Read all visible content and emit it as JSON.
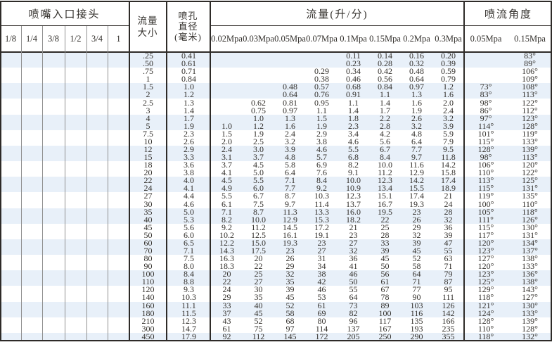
{
  "header": {
    "connector_title": "喷嘴入口接头",
    "connector_sizes": [
      "1/8",
      "1/4",
      "3/8",
      "1/2",
      "3/4",
      "1"
    ],
    "flow_size_lines": [
      "流量",
      "大小"
    ],
    "orifice_lines": [
      "喷孔",
      "直径",
      "(毫米)"
    ],
    "flow_title": "流量(升/分)",
    "pressure_labels": [
      "0.02Mpa",
      "0.03Mpa",
      "0.05Mpa",
      "0.07Mpa",
      "0.1Mpa",
      "0.15Mpa",
      "0.2Mpa",
      "0.3Mpa"
    ],
    "angle_title": "喷流角度",
    "angle_pressure_labels": [
      "0.05Mpa",
      "0.15Mpa"
    ]
  },
  "colors": {
    "stripe": "#e8f0f9",
    "border": "#2e2b28",
    "thin_grid": "#909090",
    "dot": "#261f19",
    "text": "#33302c"
  },
  "table": {
    "rows": [
      {
        "size": ".25",
        "dia": "0.41",
        "dots": [
          1,
          0,
          0,
          0,
          0,
          0
        ],
        "flows": [
          "",
          "",
          "",
          "",
          "0.11",
          "0.14",
          "0.16",
          "0.20"
        ],
        "angles": [
          "",
          "83°"
        ]
      },
      {
        "size": ".50",
        "dia": "0.61",
        "dots": [
          1,
          0,
          0,
          0,
          0,
          0
        ],
        "flows": [
          "",
          "",
          "",
          "",
          "0.23",
          "0.28",
          "0.32",
          "0.39"
        ],
        "angles": [
          "",
          "89°"
        ]
      },
      {
        "size": ".75",
        "dia": "0.71",
        "dots": [
          1,
          0,
          0,
          0,
          0,
          0
        ],
        "flows": [
          "",
          "",
          "",
          "0.29",
          "0.34",
          "0.42",
          "0.48",
          "0.59"
        ],
        "angles": [
          "",
          "106°"
        ]
      },
      {
        "size": "1",
        "dia": "0.84",
        "dots": [
          1,
          0,
          0,
          0,
          0,
          0
        ],
        "flows": [
          "",
          "",
          "",
          "0.38",
          "0.46",
          "0.56",
          "0.64",
          "0.79"
        ],
        "angles": [
          "",
          "109°"
        ]
      },
      {
        "size": "1.5",
        "dia": "1.0",
        "dots": [
          1,
          0,
          0,
          0,
          0,
          0
        ],
        "flows": [
          "",
          "",
          "0.48",
          "0.57",
          "0.68",
          "0.84",
          "0.97",
          "1.2"
        ],
        "angles": [
          "73°",
          "108°"
        ]
      },
      {
        "size": "2",
        "dia": "1.2",
        "dots": [
          1,
          1,
          0,
          0,
          0,
          0
        ],
        "flows": [
          "",
          "",
          "0.64",
          "0.76",
          "0.91",
          "1.1",
          "1.3",
          "1.6"
        ],
        "angles": [
          "83°",
          "113°"
        ]
      },
      {
        "size": "2.5",
        "dia": "1.3",
        "dots": [
          1,
          1,
          0,
          0,
          0,
          0
        ],
        "flows": [
          "",
          "0.62",
          "0.81",
          "0.95",
          "1.1",
          "1.4",
          "1.6",
          "2.0"
        ],
        "angles": [
          "98°",
          "122°"
        ]
      },
      {
        "size": "3",
        "dia": "1.4",
        "dots": [
          1,
          1,
          0,
          0,
          0,
          0
        ],
        "flows": [
          "",
          "0.75",
          "0.97",
          "1.1",
          "1.4",
          "1.7",
          "1.9",
          "2.4"
        ],
        "angles": [
          "86°",
          "112°"
        ]
      },
      {
        "size": "4",
        "dia": "1.7",
        "dots": [
          1,
          0,
          0,
          0,
          0,
          0
        ],
        "flows": [
          "",
          "1.0",
          "1.3",
          "1.5",
          "1.8",
          "2.2",
          "2.6",
          "3.2"
        ],
        "angles": [
          "97°",
          "123°"
        ]
      },
      {
        "size": "5",
        "dia": "1.9",
        "dots": [
          1,
          1,
          0,
          0,
          0,
          0
        ],
        "flows": [
          "1.0",
          "1.2",
          "1.6",
          "1.9",
          "2.3",
          "2.8",
          "3.2",
          "3.9"
        ],
        "angles": [
          "114°",
          "128°"
        ]
      },
      {
        "size": "7.5",
        "dia": "2.3",
        "dots": [
          1,
          1,
          0,
          0,
          0,
          0
        ],
        "flows": [
          "1.5",
          "1.9",
          "2.4",
          "2.9",
          "3.4",
          "4.2",
          "4.8",
          "5.9"
        ],
        "angles": [
          "101°",
          "119°"
        ]
      },
      {
        "size": "10",
        "dia": "2.6",
        "dots": [
          1,
          1,
          0,
          0,
          0,
          0
        ],
        "flows": [
          "2.0",
          "2.5",
          "3.2",
          "3.8",
          "4.6",
          "5.6",
          "6.4",
          "7.9"
        ],
        "angles": [
          "115°",
          "133°"
        ]
      },
      {
        "size": "12",
        "dia": "2.9",
        "dots": [
          1,
          1,
          0,
          0,
          0,
          0
        ],
        "flows": [
          "2.4",
          "3.0",
          "3.9",
          "4.6",
          "5.5",
          "6.7",
          "7.7",
          "9.5"
        ],
        "angles": [
          "128°",
          "139°"
        ]
      },
      {
        "size": "15",
        "dia": "3.3",
        "dots": [
          1,
          1,
          0,
          0,
          0,
          0
        ],
        "flows": [
          "3.1",
          "3.7",
          "4.8",
          "5.7",
          "6.8",
          "8.4",
          "9.7",
          "11.8"
        ],
        "angles": [
          "98°",
          "113°"
        ]
      },
      {
        "size": "18",
        "dia": "3.6",
        "dots": [
          1,
          1,
          0,
          0,
          0,
          0
        ],
        "flows": [
          "3.7",
          "4.5",
          "5.8",
          "6.9",
          "8.2",
          "10.0",
          "11.6",
          "14.2"
        ],
        "angles": [
          "106°",
          "120°"
        ]
      },
      {
        "size": "20",
        "dia": "3.8",
        "dots": [
          1,
          1,
          0,
          0,
          0,
          0
        ],
        "flows": [
          "4.1",
          "5.0",
          "6.4",
          "7.6",
          "9.1",
          "11.2",
          "12.9",
          "15.8"
        ],
        "angles": [
          "110°",
          "122°"
        ]
      },
      {
        "size": "22",
        "dia": "4.0",
        "dots": [
          0,
          1,
          0,
          0,
          0,
          0
        ],
        "flows": [
          "4.5",
          "5.5",
          "7.1",
          "8.4",
          "10.0",
          "12.3",
          "14.2",
          "17.4"
        ],
        "angles": [
          "113°",
          "125°"
        ]
      },
      {
        "size": "24",
        "dia": "4.1",
        "dots": [
          0,
          1,
          0,
          0,
          0,
          0
        ],
        "flows": [
          "4.9",
          "6.0",
          "7.7",
          "9.2",
          "10.9",
          "13.4",
          "15.5",
          "18.9"
        ],
        "angles": [
          "115°",
          "131°"
        ]
      },
      {
        "size": "27",
        "dia": "4.4",
        "dots": [
          0,
          1,
          0,
          0,
          0,
          0
        ],
        "flows": [
          "5.5",
          "6.7",
          "8.7",
          "10.3",
          "12.3",
          "15.1",
          "17.4",
          "21"
        ],
        "angles": [
          "119°",
          "135°"
        ]
      },
      {
        "size": "30",
        "dia": "4.6",
        "dots": [
          0,
          0,
          1,
          0,
          0,
          0
        ],
        "flows": [
          "6.1",
          "7.5",
          "9.7",
          "11.4",
          "13.7",
          "16.7",
          "19.3",
          "24"
        ],
        "angles": [
          "100°",
          "110°"
        ]
      },
      {
        "size": "35",
        "dia": "5.0",
        "dots": [
          0,
          0,
          1,
          0,
          0,
          0
        ],
        "flows": [
          "7.1",
          "8.7",
          "11.3",
          "13.3",
          "16.0",
          "19.5",
          "23",
          "28"
        ],
        "angles": [
          "105°",
          "118°"
        ]
      },
      {
        "size": "40",
        "dia": "5.3",
        "dots": [
          0,
          0,
          1,
          1,
          0,
          0
        ],
        "flows": [
          "8.2",
          "10.0",
          "12.9",
          "15.3",
          "18.2",
          "22",
          "26",
          "32"
        ],
        "angles": [
          "111°",
          "126°"
        ]
      },
      {
        "size": "45",
        "dia": "5.6",
        "dots": [
          0,
          0,
          1,
          0,
          0,
          0
        ],
        "flows": [
          "9.2",
          "11.2",
          "14.5",
          "17.2",
          "21",
          "25",
          "29",
          "36"
        ],
        "angles": [
          "115°",
          "130°"
        ]
      },
      {
        "size": "50",
        "dia": "6.0",
        "dots": [
          0,
          0,
          0,
          1,
          0,
          0
        ],
        "flows": [
          "10.2",
          "12.5",
          "16.1",
          "19.1",
          "23",
          "28",
          "32",
          "39"
        ],
        "angles": [
          "117°",
          "131°"
        ]
      },
      {
        "size": "60",
        "dia": "6.5",
        "dots": [
          0,
          0,
          0,
          1,
          0,
          0
        ],
        "flows": [
          "12.2",
          "15.0",
          "19.3",
          "23",
          "27",
          "33",
          "39",
          "47"
        ],
        "angles": [
          "120°",
          "134°"
        ]
      },
      {
        "size": "70",
        "dia": "7.1",
        "dots": [
          0,
          0,
          0,
          1,
          0,
          0
        ],
        "flows": [
          "14.3",
          "17.5",
          "23",
          "27",
          "32",
          "39",
          "45",
          "55"
        ],
        "angles": [
          "123°",
          "137°"
        ]
      },
      {
        "size": "80",
        "dia": "7.5",
        "dots": [
          0,
          0,
          0,
          1,
          0,
          0
        ],
        "flows": [
          "16.3",
          "20",
          "26",
          "31",
          "36",
          "45",
          "52",
          "63"
        ],
        "angles": [
          "127°",
          "138°"
        ]
      },
      {
        "size": "90",
        "dia": "8.0",
        "dots": [
          0,
          0,
          0,
          0,
          1,
          0
        ],
        "flows": [
          "18.3",
          "22",
          "29",
          "34",
          "41",
          "50",
          "58",
          "71"
        ],
        "angles": [
          "120°",
          "133°"
        ]
      },
      {
        "size": "100",
        "dia": "8.4",
        "dots": [
          0,
          0,
          0,
          0,
          1,
          0
        ],
        "flows": [
          "20",
          "25",
          "32",
          "38",
          "46",
          "56",
          "64",
          "79"
        ],
        "angles": [
          "123°",
          "136°"
        ]
      },
      {
        "size": "110",
        "dia": "8.8",
        "dots": [
          0,
          0,
          0,
          0,
          1,
          0
        ],
        "flows": [
          "22",
          "27",
          "35",
          "42",
          "50",
          "61",
          "71",
          "87"
        ],
        "angles": [
          "125°",
          "138°"
        ]
      },
      {
        "size": "120",
        "dia": "9.3",
        "dots": [
          0,
          0,
          0,
          1,
          1,
          0
        ],
        "flows": [
          "24",
          "30",
          "39",
          "46",
          "55",
          "67",
          "77",
          "95"
        ],
        "angles": [
          "129°",
          "143°"
        ]
      },
      {
        "size": "140",
        "dia": "10.3",
        "dots": [
          0,
          0,
          0,
          0,
          1,
          0
        ],
        "flows": [
          "29",
          "35",
          "45",
          "53",
          "64",
          "78",
          "90",
          "111"
        ],
        "angles": [
          "118°",
          "127°"
        ]
      },
      {
        "size": "160",
        "dia": "11.1",
        "dots": [
          0,
          0,
          0,
          0,
          1,
          0
        ],
        "flows": [
          "33",
          "40",
          "52",
          "61",
          "73",
          "89",
          "103",
          "126"
        ],
        "angles": [
          "121°",
          "130°"
        ]
      },
      {
        "size": "180",
        "dia": "11.5",
        "dots": [
          0,
          0,
          0,
          0,
          1,
          0
        ],
        "flows": [
          "37",
          "45",
          "58",
          "69",
          "82",
          "100",
          "116",
          "142"
        ],
        "angles": [
          "124°",
          "133°"
        ]
      },
      {
        "size": "210",
        "dia": "12.3",
        "dots": [
          0,
          0,
          0,
          0,
          1,
          0
        ],
        "flows": [
          "43",
          "52",
          "68",
          "80",
          "96",
          "117",
          "135",
          "166"
        ],
        "angles": [
          "128°",
          "139°"
        ]
      },
      {
        "size": "300",
        "dia": "14.7",
        "dots": [
          0,
          0,
          0,
          0,
          0,
          1
        ],
        "flows": [
          "61",
          "75",
          "97",
          "114",
          "137",
          "167",
          "193",
          "235"
        ],
        "angles": [
          "110°",
          "128°"
        ]
      },
      {
        "size": "450",
        "dia": "17.9",
        "dots": [
          0,
          0,
          0,
          0,
          0,
          1
        ],
        "flows": [
          "92",
          "112",
          "145",
          "172",
          "205",
          "250",
          "290",
          "355"
        ],
        "angles": [
          "118°",
          "132°"
        ]
      }
    ]
  }
}
